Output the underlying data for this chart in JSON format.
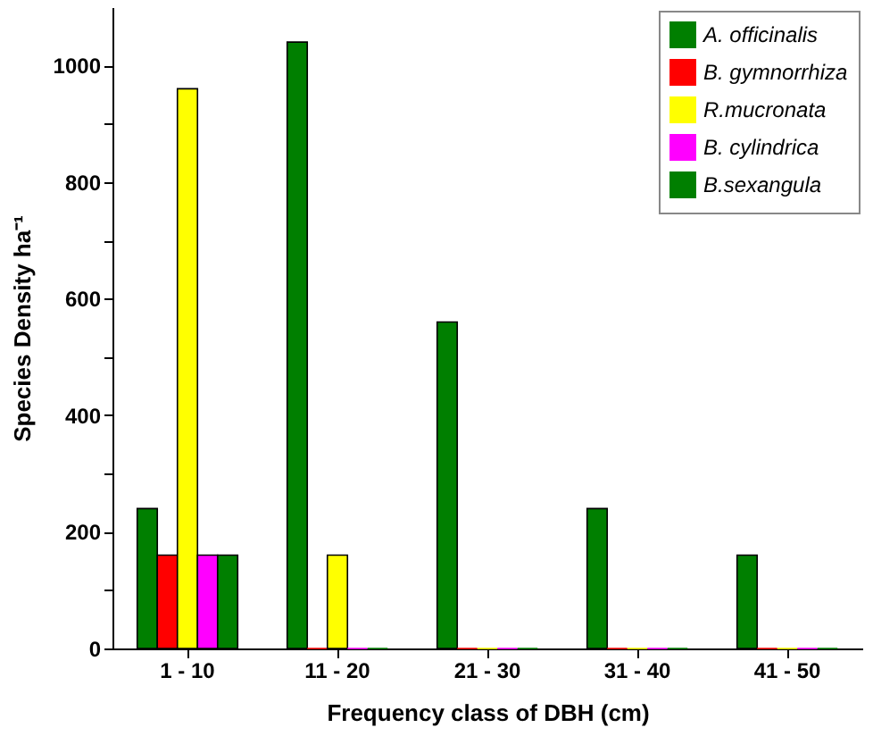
{
  "chart_data": {
    "type": "bar",
    "xlabel": "Frequency class of DBH (cm)",
    "ylabel": "Species Density ha⁻¹",
    "categories": [
      "1 - 10",
      "11 - 20",
      "21 - 30",
      "31 - 40",
      "41 - 50"
    ],
    "series": [
      {
        "name": "A. officinalis",
        "color": "#007f00",
        "values": [
          240,
          1040,
          560,
          240,
          160
        ]
      },
      {
        "name": "B. gymnorrhiza",
        "color": "#ff0000",
        "values": [
          160,
          0,
          0,
          0,
          0
        ]
      },
      {
        "name": "R.mucronata",
        "color": "#ffff00",
        "values": [
          960,
          160,
          0,
          0,
          0
        ]
      },
      {
        "name": "B. cylindrica",
        "color": "#ff00ff",
        "values": [
          160,
          0,
          0,
          0,
          0
        ]
      },
      {
        "name": "B.sexangula",
        "color": "#007f00",
        "values": [
          160,
          0,
          0,
          0,
          0
        ]
      }
    ],
    "ylim": [
      0,
      1100
    ],
    "yticks": [
      0,
      {
        "value": 100,
        "label": null
      },
      200,
      {
        "value": 300,
        "label": null
      },
      400,
      {
        "value": 500,
        "label": null
      },
      600,
      {
        "value": 700,
        "label": null
      },
      800,
      {
        "value": 900,
        "label": null
      },
      1000
    ],
    "grid": false,
    "legend": "top right"
  }
}
